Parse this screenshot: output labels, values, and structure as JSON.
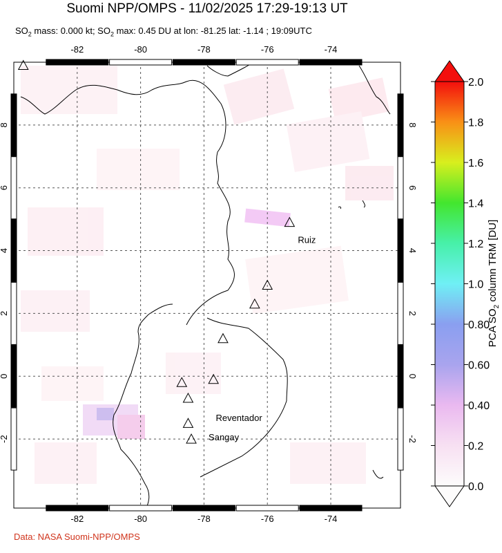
{
  "title": "Suomi NPP/OMPS - 11/02/2025 17:29-19:13 UT",
  "subtitle": {
    "prefix": "SO",
    "sub1": "2",
    "mid1": " mass: 0.000 kt; SO",
    "sub2": "2",
    "rest": " max: 0.45 DU at lon: -81.25 lat: -1.14 ; 19:09UTC"
  },
  "credit": "Data: NASA Suomi-NPP/OMPS",
  "map": {
    "lon_ticks": [
      "-82",
      "-80",
      "-78",
      "-76",
      "-74"
    ],
    "lat_ticks": [
      "8",
      "6",
      "4",
      "2",
      "0",
      "-2"
    ],
    "volcanoes": [
      {
        "name": "Ruiz",
        "lon": -75.3,
        "lat": 4.9
      },
      {
        "name": "",
        "lon": -76.0,
        "lat": 2.9
      },
      {
        "name": "",
        "lon": -76.4,
        "lat": 2.3
      },
      {
        "name": "",
        "lon": -77.4,
        "lat": 1.2
      },
      {
        "name": "",
        "lon": -78.7,
        "lat": -0.2
      },
      {
        "name": "",
        "lon": -77.7,
        "lat": -0.1
      },
      {
        "name": "Reventador",
        "lon": -78.5,
        "lat": -0.7
      },
      {
        "name": "",
        "lon": -78.5,
        "lat": -1.5
      },
      {
        "name": "Sangay",
        "lon": -78.4,
        "lat": -2.0
      },
      {
        "name": "",
        "lon": -83.7,
        "lat": 9.9
      }
    ]
  },
  "colorbar": {
    "label_pre": "PCA SO",
    "label_sub": "2",
    "label_post": " column TRM [DU]",
    "ticks": [
      "2.0",
      "1.8",
      "1.6",
      "1.4",
      "1.2",
      "1.0",
      "0.80",
      "0.60",
      "0.40",
      "0.2",
      "0.0"
    ]
  }
}
